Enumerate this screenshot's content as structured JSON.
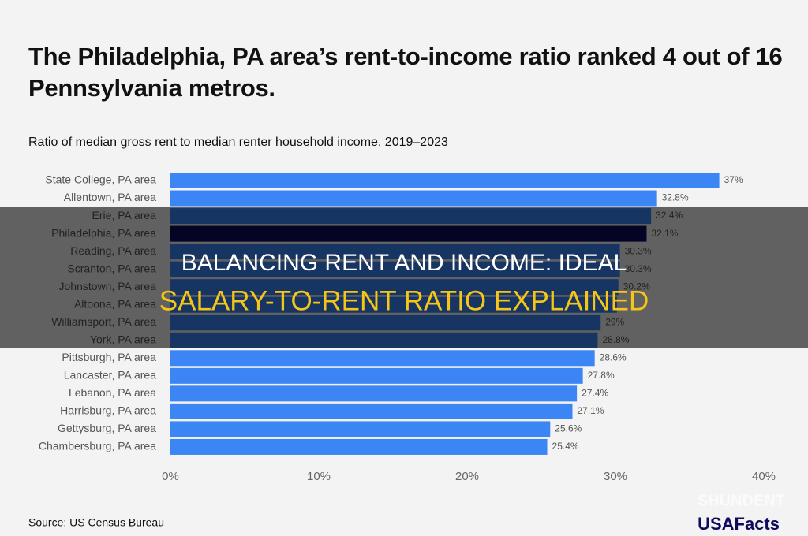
{
  "chart_data": {
    "type": "hbar",
    "title": "The Philadelphia, PA area’s rent-to-income ratio ranked 4 out of 16 Pennsylvania metros.",
    "subtitle": "Ratio of median gross rent to median renter household income, 2019–2023",
    "categories": [
      "State College, PA area",
      "Allentown, PA area",
      "Erie, PA area",
      "Philadelphia, PA area",
      "Reading, PA area",
      "Scranton, PA area",
      "Johnstown, PA area",
      "Altoona, PA area",
      "Williamsport, PA area",
      "York, PA area",
      "Pittsburgh, PA area",
      "Lancaster, PA area",
      "Lebanon, PA area",
      "Harrisburg, PA area",
      "Gettysburg, PA area",
      "Chambersburg, PA area"
    ],
    "values": [
      37,
      32.8,
      32.4,
      32.1,
      30.3,
      30.3,
      30.2,
      30.1,
      29,
      28.8,
      28.6,
      27.8,
      27.4,
      27.1,
      25.6,
      25.4
    ],
    "value_labels": [
      "37%",
      "32.8%",
      "32.4%",
      "32.1%",
      "30.3%",
      "30.3%",
      "30.2%",
      null,
      "29%",
      "28.8%",
      "28.6%",
      "27.8%",
      "27.4%",
      "27.1%",
      "25.6%",
      "25.4%"
    ],
    "colors": [
      "#3b86f4",
      "#3b86f4",
      "#3b86f4",
      "#0e0b5c",
      "#3b86f4",
      "#3b86f4",
      "#3b86f4",
      "#3b86f4",
      "#3b86f4",
      "#3b86f4",
      "#3b86f4",
      "#3b86f4",
      "#3b86f4",
      "#3b86f4",
      "#3b86f4",
      "#3b86f4"
    ],
    "xlim": [
      0,
      40
    ],
    "xticks": [
      {
        "value": 0,
        "label": "0%"
      },
      {
        "value": 10,
        "label": "10%"
      },
      {
        "value": 20,
        "label": "20%"
      },
      {
        "value": 30,
        "label": "30%"
      },
      {
        "value": 40,
        "label": "40%"
      }
    ],
    "source": "Source: US Census Bureau"
  },
  "banner": {
    "line1": "BALANCING RENT AND INCOME: IDEAL",
    "line2": "SALARY-TO-RENT RATIO EXPLAINED"
  },
  "watermark": "SHUNDENT",
  "logo": "USAFacts"
}
